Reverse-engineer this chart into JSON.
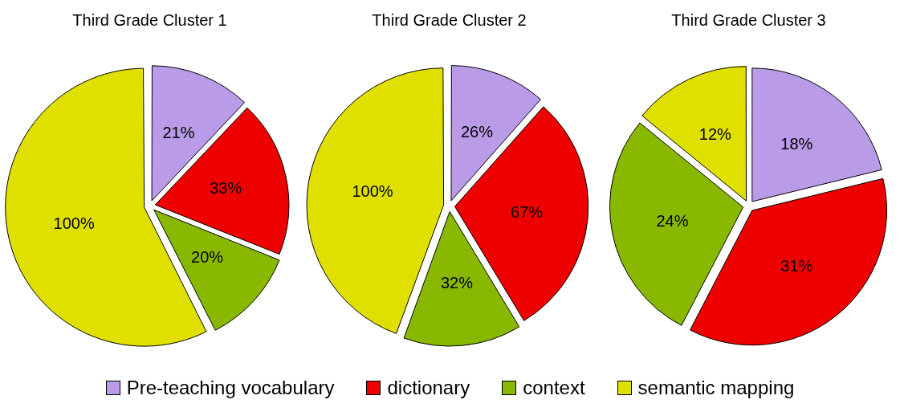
{
  "chart_data": [
    {
      "type": "pie",
      "title": "Third Grade Cluster 1",
      "categories": [
        "Pre-teaching vocabulary",
        "dictionary",
        "context",
        "semantic mapping"
      ],
      "values": [
        21,
        33,
        20,
        100
      ],
      "colors": [
        "#b99be8",
        "#ee0000",
        "#88b800",
        "#e0e000"
      ],
      "value_labels": [
        "21%",
        "33%",
        "20%",
        "100%"
      ],
      "legend": "bottom"
    },
    {
      "type": "pie",
      "title": "Third Grade Cluster 2",
      "categories": [
        null,
        null,
        null,
        null
      ],
      "values": [
        26,
        67,
        32,
        100
      ],
      "colors": [
        "#b99be8",
        "#ee0000",
        "#88b800",
        "#e0e000"
      ],
      "value_labels": [
        "26%",
        "67%",
        "32%",
        "100%"
      ]
    },
    {
      "type": "pie",
      "title": "Third Grade Cluster 3",
      "categories": [
        null,
        null,
        null,
        null
      ],
      "values": [
        18,
        31,
        24,
        12
      ],
      "colors": [
        "#b99be8",
        "#ee0000",
        "#88b800",
        "#e0e000"
      ],
      "value_labels": [
        "18%",
        "31%",
        "24%",
        "12%"
      ]
    }
  ]
}
